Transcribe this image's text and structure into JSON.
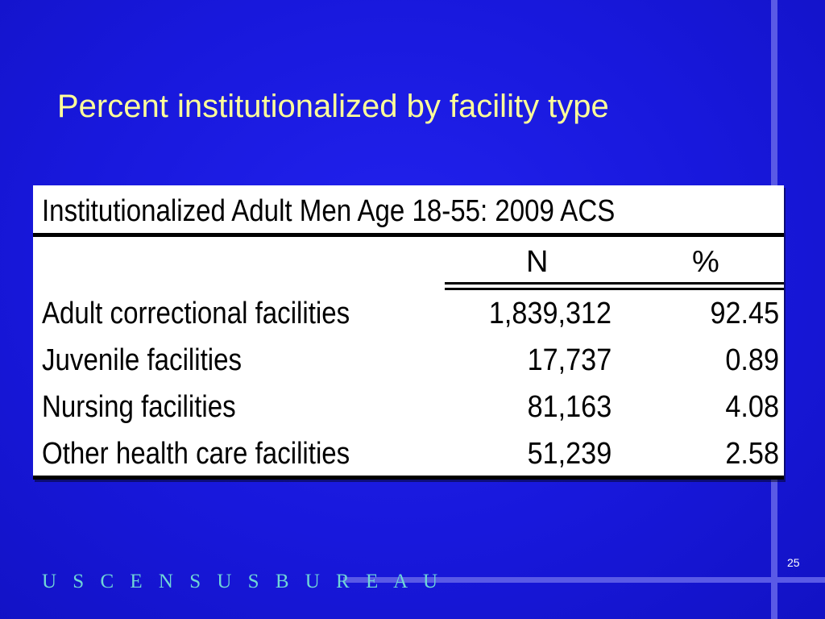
{
  "slide": {
    "title": "Percent institutionalized by facility type",
    "page_number": "25",
    "logo_text": "U S C E N S U S B U R E A U"
  },
  "table": {
    "title": "Institutionalized Adult Men Age 18-55: 2009 ACS",
    "headers": {
      "n": "N",
      "pct": "%"
    },
    "rows": [
      {
        "name": "Adult correctional facilities",
        "n": "1,839,312",
        "pct": "92.45"
      },
      {
        "name": "Juvenile facilities",
        "n": "17,737",
        "pct": "0.89"
      },
      {
        "name": "Nursing facilities",
        "n": "81,163",
        "pct": "4.08"
      },
      {
        "name": "Other health care facilities",
        "n": "51,239",
        "pct": "2.58"
      }
    ]
  },
  "colors": {
    "background": "#1616d8",
    "title": "#ffff99",
    "accent_line": "#5a5ae6",
    "logo": "#6fd6d6"
  }
}
